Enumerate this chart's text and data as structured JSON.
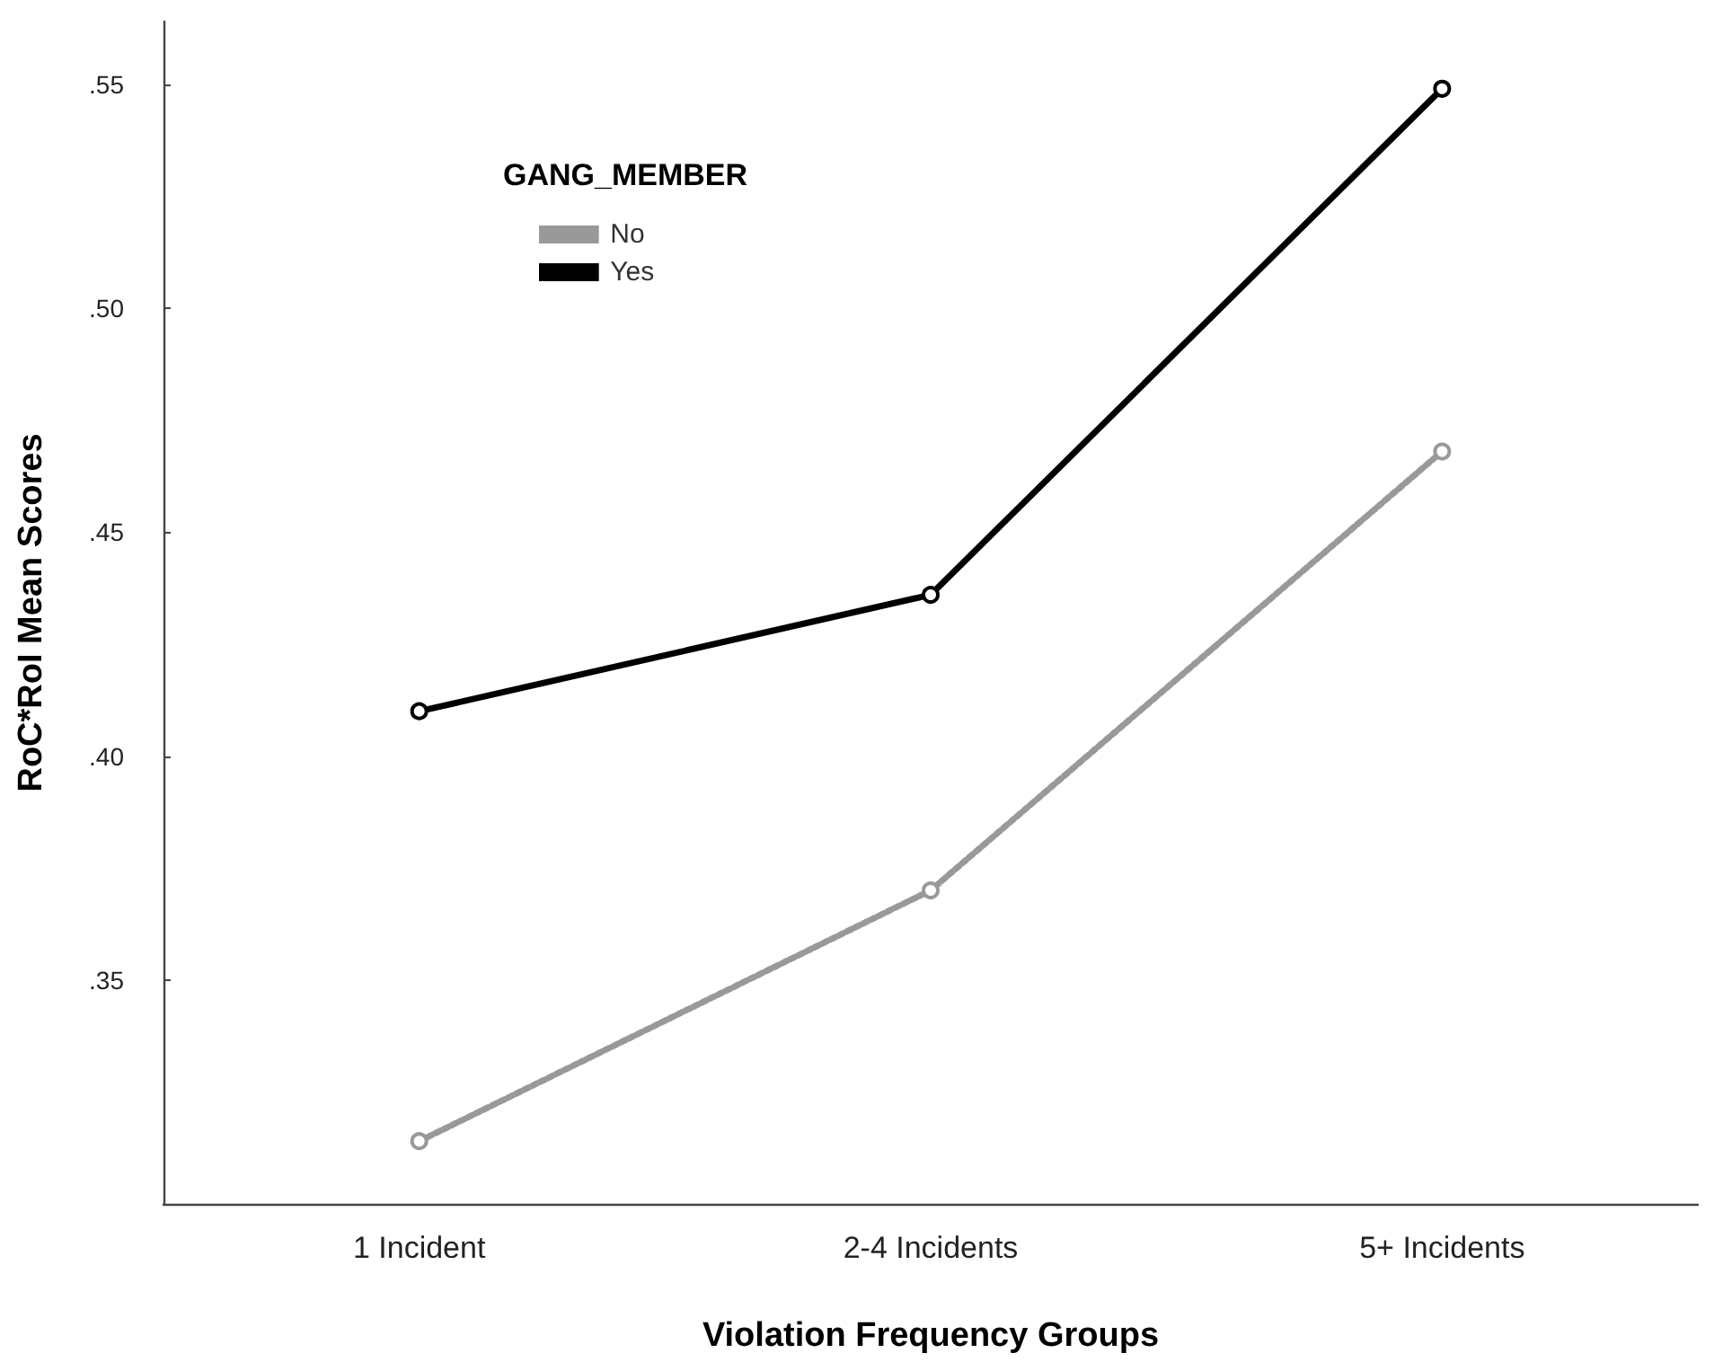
{
  "chart_data": {
    "type": "line",
    "xlabel": "Violation Frequency Groups",
    "ylabel": "RoC*RoI Mean Scores",
    "legend_title": "GANG_MEMBER",
    "categories": [
      "1 Incident",
      "2-4 Incidents",
      "5+ Incidents"
    ],
    "series": [
      {
        "name": "No",
        "color": "#999999",
        "line_style": "dotted",
        "values": [
          0.314,
          0.37,
          0.468
        ]
      },
      {
        "name": "Yes",
        "color": "#000000",
        "line_style": "solid",
        "values": [
          0.41,
          0.436,
          0.549
        ]
      }
    ],
    "ylim": [
      0.3,
      0.564
    ],
    "yticks": [
      {
        "value": 0.35,
        "label": ".35"
      },
      {
        "value": 0.4,
        "label": ".40"
      },
      {
        "value": 0.45,
        "label": ".45"
      },
      {
        "value": 0.5,
        "label": ".50"
      },
      {
        "value": 0.55,
        "label": ".55"
      }
    ],
    "grid": false,
    "legend": "top left",
    "marker": "circle"
  }
}
